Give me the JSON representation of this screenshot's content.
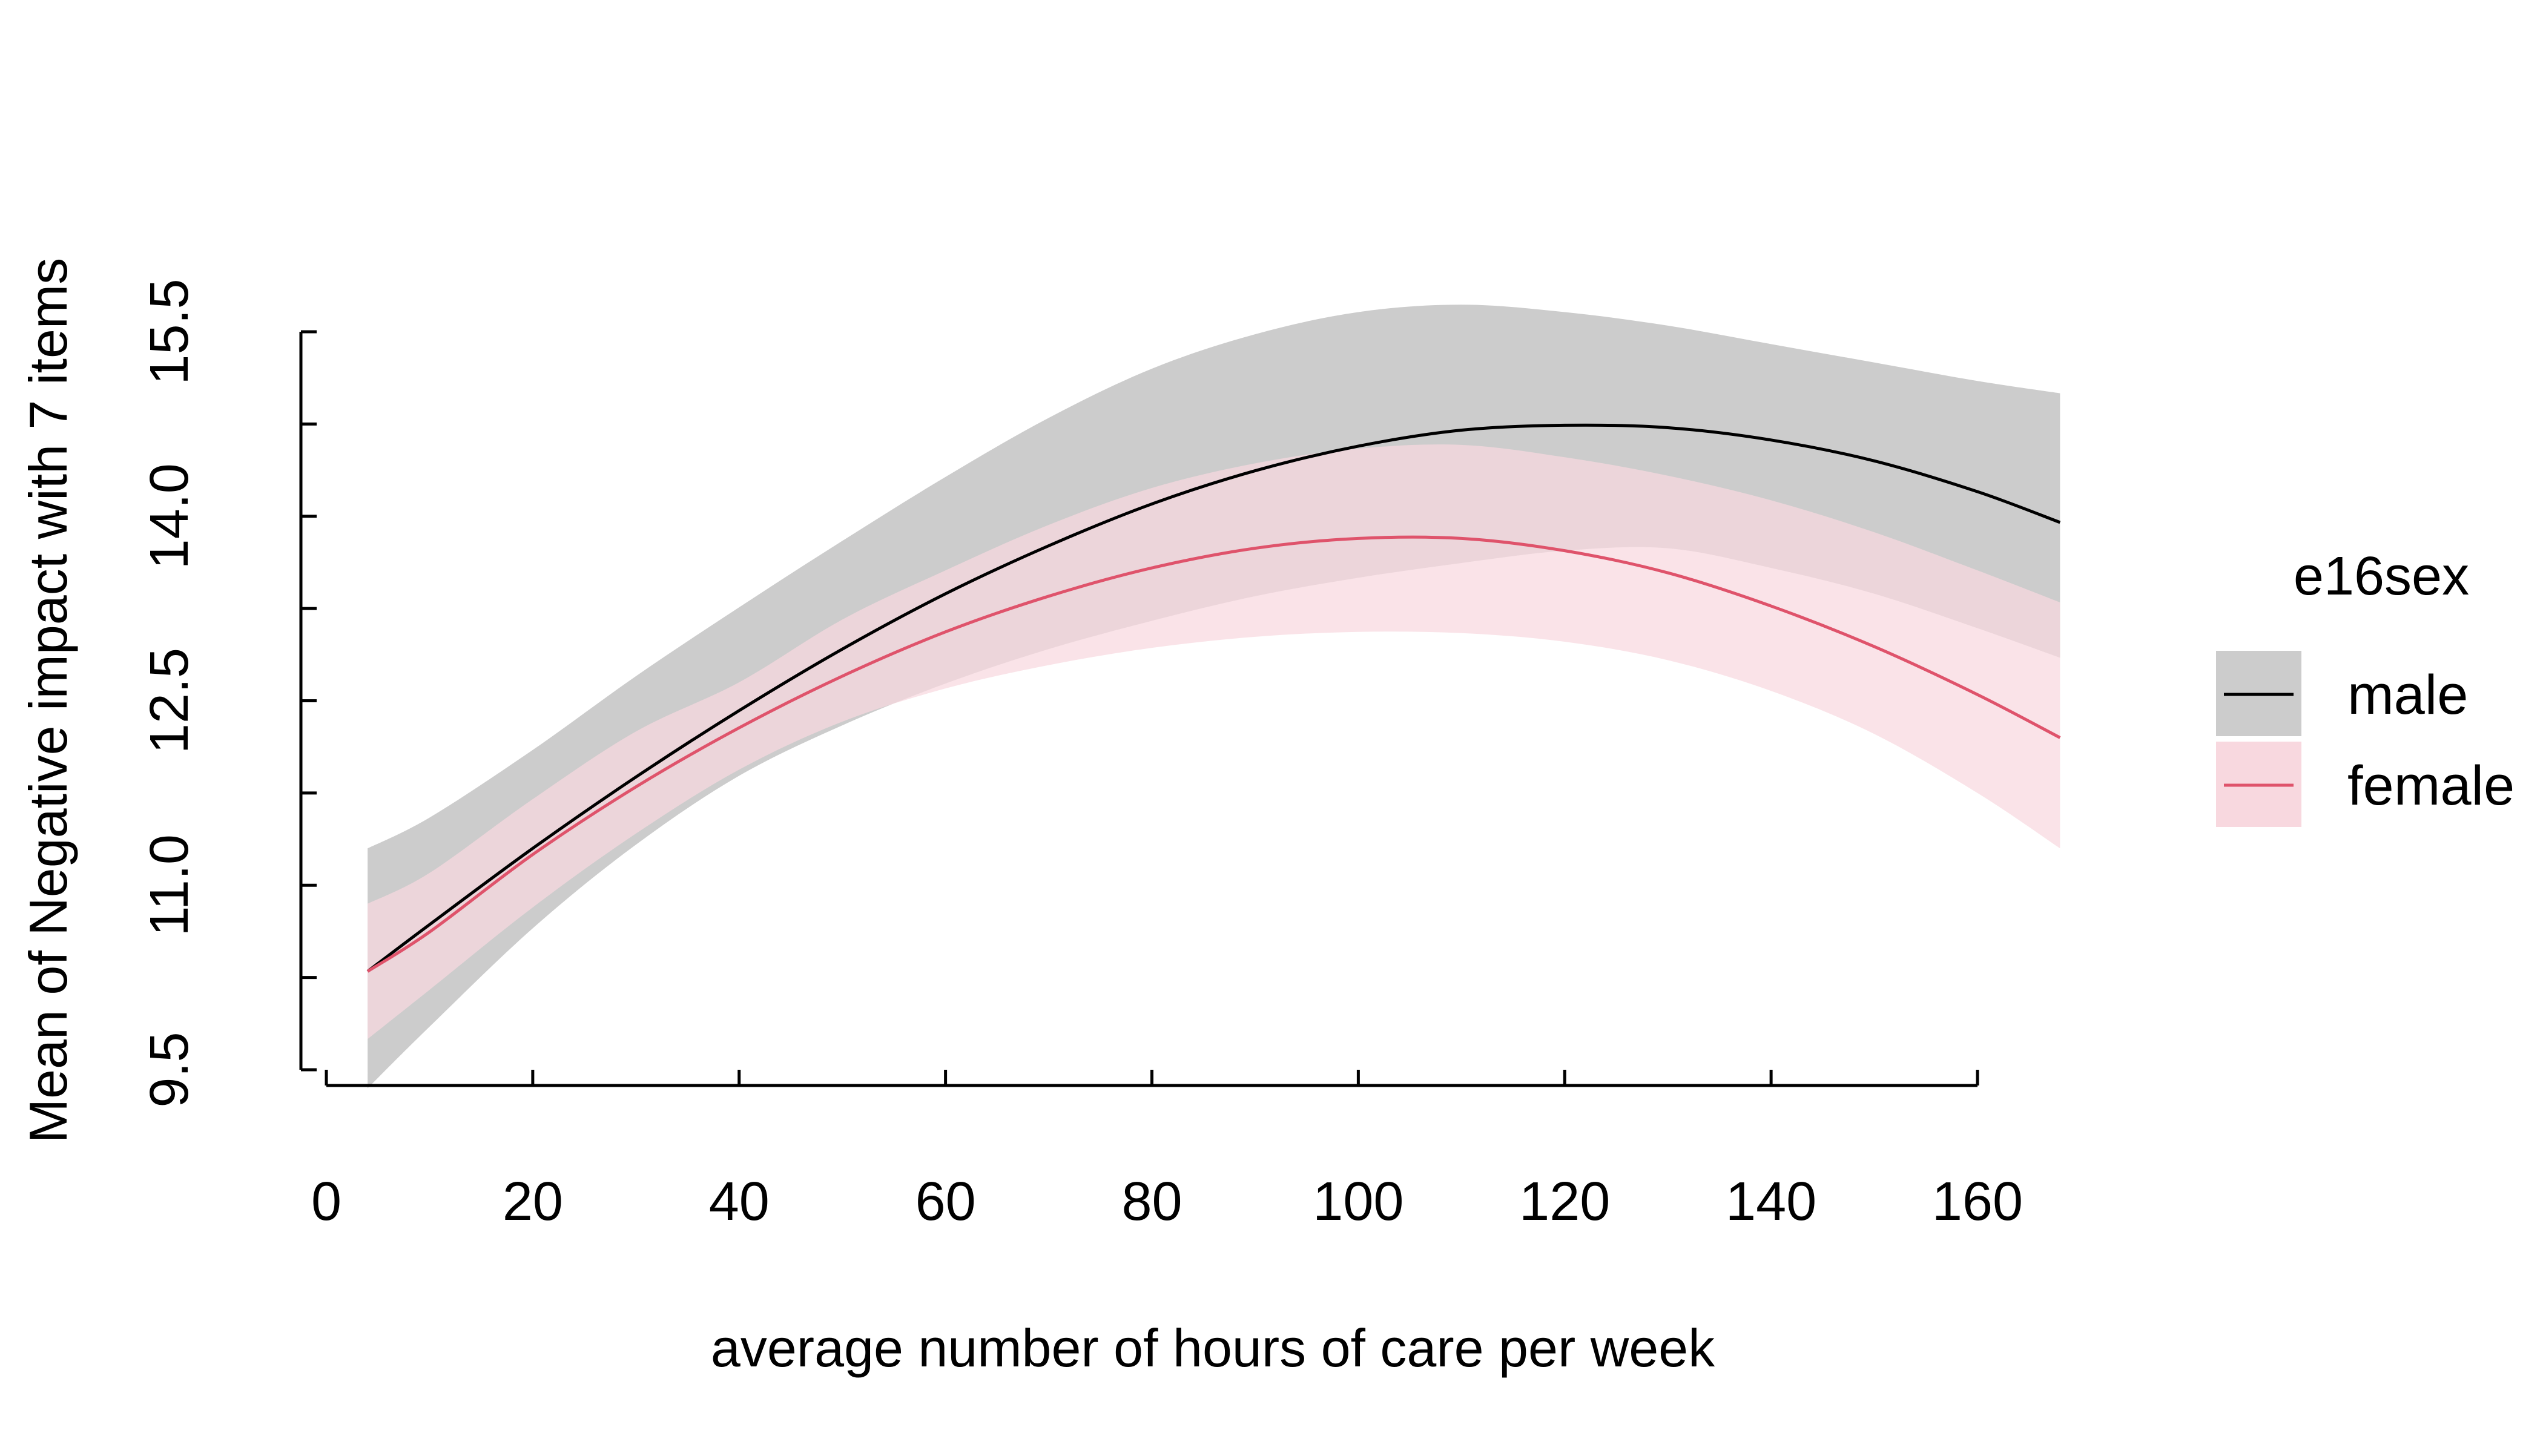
{
  "chart_data": {
    "type": "line",
    "title": "",
    "xlabel": "average number of hours of care per week",
    "ylabel": "Mean of Negative impact with 7 items",
    "xlim": [
      0,
      160
    ],
    "ylim": [
      9.5,
      15.5
    ],
    "x_ticks": [
      0,
      20,
      40,
      60,
      80,
      100,
      120,
      140,
      160
    ],
    "x_tick_labels": [
      "0",
      "20",
      "40",
      "60",
      "80",
      "100",
      "120",
      "140",
      "160"
    ],
    "y_ticks": [
      9.5,
      10.25,
      11.0,
      11.75,
      12.5,
      13.25,
      14.0,
      14.75,
      15.5
    ],
    "y_tick_labels": [
      "9.5",
      "11.0",
      "12.5",
      "14.0",
      "15.5"
    ],
    "y_labeled_ticks": [
      9.5,
      11.0,
      12.5,
      14.0,
      15.5
    ],
    "grid": false,
    "legend": {
      "title": "e16sex",
      "placement": "right"
    },
    "x": [
      4,
      10,
      20,
      30,
      40,
      50,
      60,
      70,
      80,
      90,
      100,
      110,
      120,
      130,
      140,
      150,
      160,
      168
    ],
    "series": [
      {
        "name": "male",
        "color": "#000000",
        "band_color": "#cccccc",
        "values": [
          10.3,
          10.68,
          11.3,
          11.88,
          12.42,
          12.92,
          13.37,
          13.76,
          14.1,
          14.37,
          14.57,
          14.7,
          14.74,
          14.72,
          14.62,
          14.45,
          14.2,
          13.95
        ],
        "lower": [
          9.35,
          9.85,
          10.65,
          11.33,
          11.89,
          12.3,
          12.64,
          12.92,
          13.15,
          13.35,
          13.5,
          13.62,
          13.72,
          13.74,
          13.58,
          13.37,
          13.09,
          12.85
        ],
        "upper": [
          11.3,
          11.55,
          12.1,
          12.7,
          13.26,
          13.8,
          14.32,
          14.8,
          15.2,
          15.48,
          15.66,
          15.72,
          15.66,
          15.55,
          15.4,
          15.25,
          15.1,
          15.0
        ]
      },
      {
        "name": "female",
        "color": "#df536b",
        "band_color": "#f8d8df",
        "values": [
          10.3,
          10.62,
          11.25,
          11.8,
          12.28,
          12.7,
          13.06,
          13.35,
          13.58,
          13.74,
          13.82,
          13.82,
          13.72,
          13.54,
          13.27,
          12.94,
          12.55,
          12.2
        ],
        "lower": [
          9.75,
          10.15,
          10.82,
          11.42,
          11.94,
          12.33,
          12.6,
          12.79,
          12.93,
          13.02,
          13.06,
          13.05,
          12.98,
          12.83,
          12.58,
          12.23,
          11.75,
          11.3
        ],
        "upper": [
          10.85,
          11.1,
          11.7,
          12.25,
          12.65,
          13.16,
          13.56,
          13.93,
          14.23,
          14.43,
          14.55,
          14.58,
          14.48,
          14.33,
          14.13,
          13.87,
          13.56,
          13.3
        ]
      }
    ]
  }
}
